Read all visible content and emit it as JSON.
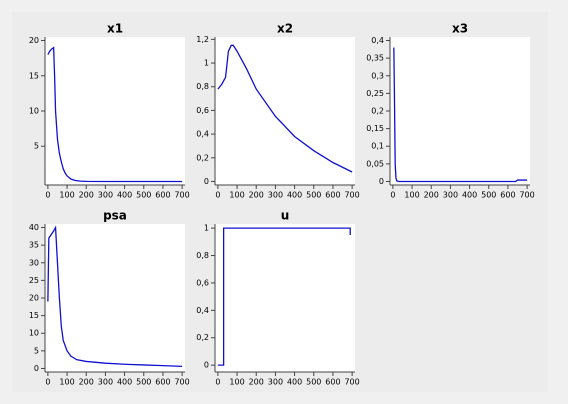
{
  "chart_data": [
    {
      "type": "line",
      "title": "x1",
      "color": "#1010d0",
      "x": [
        0,
        10,
        20,
        30,
        35,
        40,
        50,
        60,
        70,
        80,
        90,
        100,
        120,
        140,
        170,
        200,
        300,
        400,
        500,
        600,
        700
      ],
      "values": [
        18,
        18.5,
        18.8,
        19,
        15,
        10,
        6,
        4,
        2.8,
        1.8,
        1.2,
        0.8,
        0.35,
        0.15,
        0.05,
        0.02,
        0,
        0,
        0,
        0,
        0
      ],
      "xlim": [
        -15,
        715
      ],
      "ylim": [
        -0.5,
        20.5
      ],
      "xticks": [
        0,
        100,
        200,
        300,
        400,
        500,
        600,
        700
      ],
      "yticks": [
        5,
        10,
        15,
        20
      ]
    },
    {
      "type": "line",
      "title": "x2",
      "color": "#1010d0",
      "x": [
        0,
        20,
        40,
        55,
        70,
        80,
        100,
        150,
        200,
        300,
        400,
        500,
        600,
        700
      ],
      "values": [
        0.78,
        0.82,
        0.88,
        1.1,
        1.15,
        1.15,
        1.1,
        0.95,
        0.78,
        0.55,
        0.38,
        0.26,
        0.16,
        0.08
      ],
      "xlim": [
        -15,
        715
      ],
      "ylim": [
        -0.03,
        1.22
      ],
      "xticks": [
        0,
        100,
        200,
        300,
        400,
        500,
        600,
        700
      ],
      "yticks": [
        0,
        {
          "value": 0.2,
          "label": "0,2"
        },
        {
          "value": 0.4,
          "label": "0,4"
        },
        {
          "value": 0.6,
          "label": "0,6"
        },
        {
          "value": 0.8,
          "label": "0,8"
        },
        1,
        {
          "value": 1.2,
          "label": "1,2"
        }
      ]
    },
    {
      "type": "line",
      "title": "x3",
      "color": "#1010d0",
      "x": [
        5,
        8,
        12,
        16,
        20,
        30,
        100,
        640,
        650,
        700
      ],
      "values": [
        0.38,
        0.25,
        0.05,
        0.01,
        0.002,
        0,
        0,
        0,
        0.004,
        0.004
      ],
      "xlim": [
        -15,
        715
      ],
      "ylim": [
        -0.01,
        0.41
      ],
      "xticks": [
        0,
        100,
        200,
        300,
        400,
        500,
        600,
        700
      ],
      "yticks": [
        0,
        {
          "value": 0.05,
          "label": "0,05"
        },
        {
          "value": 0.1,
          "label": "0,1"
        },
        {
          "value": 0.15,
          "label": "0,15"
        },
        {
          "value": 0.2,
          "label": "0,2"
        },
        {
          "value": 0.25,
          "label": "0,25"
        },
        {
          "value": 0.3,
          "label": "0,3"
        },
        {
          "value": 0.35,
          "label": "0,35"
        },
        {
          "value": 0.4,
          "label": "0,4"
        }
      ]
    },
    {
      "type": "line",
      "title": "psa",
      "color": "#1010d0",
      "x": [
        0,
        5,
        30,
        40,
        50,
        60,
        70,
        80,
        100,
        120,
        150,
        200,
        300,
        400,
        500,
        600,
        700
      ],
      "values": [
        19,
        37,
        39,
        40,
        30,
        20,
        12,
        8,
        5,
        3.5,
        2.5,
        2,
        1.5,
        1.2,
        1,
        0.8,
        0.6
      ],
      "xlim": [
        -15,
        715
      ],
      "ylim": [
        -1,
        41
      ],
      "xticks": [
        0,
        100,
        200,
        300,
        400,
        500,
        600,
        700
      ],
      "yticks": [
        0,
        5,
        10,
        15,
        20,
        25,
        30,
        35,
        40
      ]
    },
    {
      "type": "line",
      "title": "u",
      "color": "#1010d0",
      "x": [
        0,
        30,
        30,
        690,
        690
      ],
      "values": [
        0,
        0,
        1,
        1,
        0.95
      ],
      "xlim": [
        -15,
        715
      ],
      "ylim": [
        -0.05,
        1.03
      ],
      "xticks": [
        0,
        100,
        200,
        300,
        400,
        500,
        600,
        700
      ],
      "yticks": [
        0,
        {
          "value": 0.2,
          "label": "0,2"
        },
        {
          "value": 0.4,
          "label": "0,4"
        },
        {
          "value": 0.6,
          "label": "0,6"
        },
        {
          "value": 0.8,
          "label": "0,8"
        },
        1
      ]
    }
  ]
}
